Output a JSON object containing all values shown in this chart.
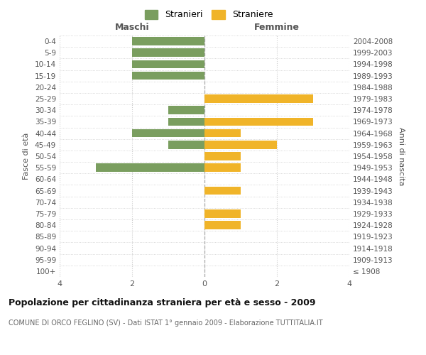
{
  "age_groups": [
    "100+",
    "95-99",
    "90-94",
    "85-89",
    "80-84",
    "75-79",
    "70-74",
    "65-69",
    "60-64",
    "55-59",
    "50-54",
    "45-49",
    "40-44",
    "35-39",
    "30-34",
    "25-29",
    "20-24",
    "15-19",
    "10-14",
    "5-9",
    "0-4"
  ],
  "birth_years": [
    "≤ 1908",
    "1909-1913",
    "1914-1918",
    "1919-1923",
    "1924-1928",
    "1929-1933",
    "1934-1938",
    "1939-1943",
    "1944-1948",
    "1949-1953",
    "1954-1958",
    "1959-1963",
    "1964-1968",
    "1969-1973",
    "1974-1978",
    "1979-1983",
    "1984-1988",
    "1989-1993",
    "1994-1998",
    "1999-2003",
    "2004-2008"
  ],
  "maschi": [
    0,
    0,
    0,
    0,
    0,
    0,
    0,
    0,
    0,
    3,
    0,
    1,
    2,
    1,
    1,
    0,
    0,
    2,
    2,
    2,
    2
  ],
  "femmine": [
    0,
    0,
    0,
    0,
    1,
    1,
    0,
    1,
    0,
    1,
    1,
    2,
    1,
    3,
    0,
    3,
    0,
    0,
    0,
    0,
    0
  ],
  "maschi_color": "#7a9e5f",
  "femmine_color": "#f0b429",
  "background_color": "#ffffff",
  "grid_color": "#cccccc",
  "title": "Popolazione per cittadinanza straniera per età e sesso - 2009",
  "subtitle": "COMUNE DI ORCO FEGLINO (SV) - Dati ISTAT 1° gennaio 2009 - Elaborazione TUTTITALIA.IT",
  "ylabel_left": "Fasce di età",
  "ylabel_right": "Anni di nascita",
  "xlabel_maschi": "Maschi",
  "xlabel_femmine": "Femmine",
  "legend_maschi": "Stranieri",
  "legend_femmine": "Straniere",
  "xlim": 4
}
